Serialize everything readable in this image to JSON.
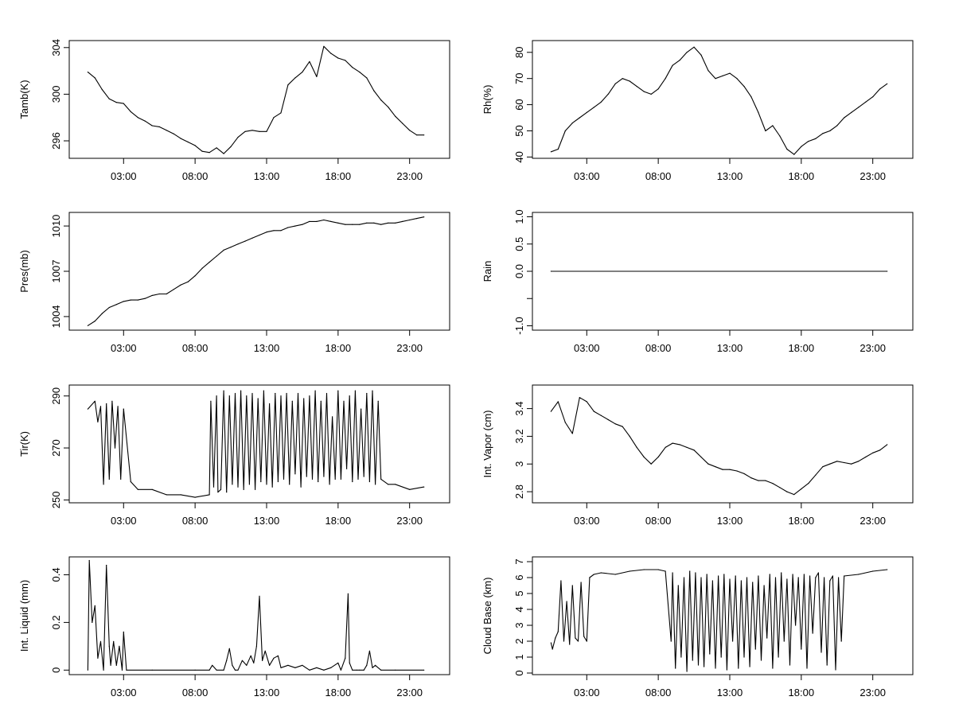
{
  "figure": {
    "x_tick_labels": [
      "03:00",
      "08:00",
      "13:00",
      "18:00",
      "23:00"
    ]
  },
  "chart_data": [
    {
      "type": "line",
      "ylabel": "Tamb(K)",
      "x": [
        0.5,
        1,
        1.5,
        2,
        2.5,
        3,
        3.5,
        4,
        4.5,
        5,
        5.5,
        6,
        6.5,
        7,
        7.5,
        8,
        8.5,
        9,
        9.5,
        10,
        10.5,
        11,
        11.5,
        12,
        12.5,
        13,
        13.5,
        14,
        14.5,
        15,
        15.5,
        16,
        16.5,
        17,
        17.5,
        18,
        18.5,
        19,
        19.5,
        20,
        20.5,
        21,
        21.5,
        22,
        22.5,
        23,
        23.5,
        24
      ],
      "values": [
        301.9,
        301.4,
        300.4,
        299.6,
        299.3,
        299.2,
        298.5,
        298.0,
        297.7,
        297.3,
        297.2,
        296.9,
        296.6,
        296.2,
        295.9,
        295.6,
        295.1,
        295.0,
        295.4,
        294.9,
        295.5,
        296.3,
        296.8,
        296.9,
        296.8,
        296.8,
        298.0,
        298.4,
        300.8,
        301.4,
        301.9,
        302.8,
        301.5,
        304.1,
        303.5,
        303.1,
        302.9,
        302.3,
        301.9,
        301.4,
        300.3,
        299.5,
        298.9,
        298.1,
        297.5,
        296.9,
        296.5,
        296.5
      ],
      "yticks": [
        296,
        300,
        304
      ],
      "ylim": [
        294.5,
        304.6
      ],
      "xlim": [
        -0.8,
        25.8
      ]
    },
    {
      "type": "line",
      "ylabel": "Rh(%)",
      "x": [
        0.5,
        1,
        1.5,
        2,
        2.5,
        3,
        3.5,
        4,
        4.5,
        5,
        5.5,
        6,
        6.5,
        7,
        7.5,
        8,
        8.5,
        9,
        9.5,
        10,
        10.5,
        11,
        11.5,
        12,
        12.5,
        13,
        13.5,
        14,
        14.5,
        15,
        15.5,
        16,
        16.5,
        17,
        17.5,
        18,
        18.5,
        19,
        19.5,
        20,
        20.5,
        21,
        21.5,
        22,
        22.5,
        23,
        23.5,
        24
      ],
      "values": [
        42,
        43,
        50,
        53,
        55,
        57,
        59,
        61,
        64,
        68,
        70,
        69,
        67,
        65,
        64,
        66,
        70,
        75,
        77,
        80,
        82,
        79,
        73,
        70,
        71,
        72,
        70,
        67,
        63,
        57,
        50,
        52,
        48,
        43,
        41,
        44,
        46,
        47,
        49,
        50,
        52,
        55,
        57,
        59,
        61,
        63,
        66,
        68
      ],
      "yticks": [
        40,
        50,
        60,
        70,
        80
      ],
      "ylim": [
        39.5,
        84.5
      ],
      "xlim": [
        -0.8,
        25.8
      ]
    },
    {
      "type": "line",
      "ylabel": "Pres(mb)",
      "x": [
        0.5,
        1,
        1.5,
        2,
        2.5,
        3,
        3.5,
        4,
        4.5,
        5,
        5.5,
        6,
        6.5,
        7,
        7.5,
        8,
        8.5,
        9,
        9.5,
        10,
        10.5,
        11,
        11.5,
        12,
        12.5,
        13,
        13.5,
        14,
        14.5,
        15,
        15.5,
        16,
        16.5,
        17,
        17.5,
        18,
        18.5,
        19,
        19.5,
        20,
        20.5,
        21,
        21.5,
        22,
        22.5,
        23,
        23.5,
        24
      ],
      "values": [
        1003.4,
        1003.7,
        1004.2,
        1004.6,
        1004.8,
        1005.0,
        1005.1,
        1005.1,
        1005.2,
        1005.4,
        1005.5,
        1005.5,
        1005.8,
        1006.1,
        1006.3,
        1006.7,
        1007.2,
        1007.6,
        1008.0,
        1008.4,
        1008.6,
        1008.8,
        1009.0,
        1009.2,
        1009.4,
        1009.6,
        1009.7,
        1009.7,
        1009.9,
        1010.0,
        1010.1,
        1010.3,
        1010.3,
        1010.4,
        1010.3,
        1010.2,
        1010.1,
        1010.1,
        1010.1,
        1010.2,
        1010.2,
        1010.1,
        1010.2,
        1010.2,
        1010.3,
        1010.4,
        1010.5,
        1010.6
      ],
      "yticks": [
        1004,
        1007,
        1010
      ],
      "ylim": [
        1003.1,
        1010.9
      ],
      "xlim": [
        -0.8,
        25.8
      ]
    },
    {
      "type": "line",
      "ylabel": "Rain",
      "x": [
        0.5,
        24
      ],
      "values": [
        0,
        0
      ],
      "yticks": [
        -1.0,
        -0.5,
        0.0,
        0.5,
        1.0
      ],
      "ytick_labels": [
        "-1.0",
        "",
        "0.0",
        "0.5",
        "1.0"
      ],
      "ylim": [
        -1.08,
        1.08
      ],
      "xlim": [
        -0.8,
        25.8
      ]
    },
    {
      "type": "line",
      "ylabel": "Tir(K)",
      "x": [
        0.5,
        1,
        1.2,
        1.4,
        1.6,
        1.8,
        2,
        2.2,
        2.4,
        2.6,
        2.8,
        3,
        3.5,
        4,
        5,
        6,
        7,
        8,
        9,
        9.1,
        9.3,
        9.5,
        9.6,
        9.8,
        10,
        10.2,
        10.4,
        10.6,
        10.8,
        11,
        11.2,
        11.4,
        11.6,
        11.8,
        12,
        12.2,
        12.4,
        12.6,
        12.8,
        13,
        13.2,
        13.4,
        13.6,
        13.8,
        14,
        14.2,
        14.4,
        14.6,
        14.8,
        15,
        15.2,
        15.4,
        15.6,
        15.8,
        16,
        16.2,
        16.4,
        16.6,
        16.8,
        17,
        17.2,
        17.4,
        17.6,
        17.8,
        18,
        18.2,
        18.4,
        18.6,
        18.8,
        19,
        19.2,
        19.4,
        19.6,
        19.8,
        20,
        20.2,
        20.4,
        20.6,
        20.8,
        21,
        21.5,
        22,
        23,
        24
      ],
      "values": [
        285,
        288,
        280,
        286,
        256,
        287,
        258,
        288,
        270,
        286,
        258,
        285,
        257,
        254,
        254,
        252,
        252,
        251,
        252,
        288,
        255,
        290,
        253,
        254,
        292,
        253,
        290,
        256,
        291,
        255,
        292,
        254,
        290,
        256,
        291,
        254,
        289,
        257,
        292,
        256,
        287,
        255,
        291,
        257,
        290,
        258,
        291,
        256,
        288,
        260,
        291,
        255,
        289,
        259,
        290,
        258,
        292,
        257,
        288,
        259,
        291,
        256,
        282,
        258,
        292,
        258,
        288,
        262,
        290,
        257,
        292,
        258,
        285,
        259,
        291,
        257,
        292,
        256,
        288,
        258,
        256,
        256,
        254,
        255
      ],
      "yticks": [
        250,
        270,
        290
      ],
      "ylim": [
        248.9,
        294.2
      ],
      "xlim": [
        -0.8,
        25.8
      ]
    },
    {
      "type": "line",
      "ylabel": "Int. Vapor (cm)",
      "x": [
        0.5,
        1,
        1.5,
        2,
        2.5,
        3,
        3.5,
        4,
        4.5,
        5,
        5.5,
        6,
        6.5,
        7,
        7.5,
        8,
        8.5,
        9,
        9.5,
        10,
        10.5,
        11,
        11.5,
        12,
        12.5,
        13,
        13.5,
        14,
        14.5,
        15,
        15.5,
        16,
        16.5,
        17,
        17.5,
        18,
        18.5,
        19,
        19.5,
        20,
        20.5,
        21,
        21.5,
        22,
        22.5,
        23,
        23.5,
        24
      ],
      "values": [
        3.38,
        3.45,
        3.3,
        3.22,
        3.48,
        3.45,
        3.38,
        3.35,
        3.32,
        3.29,
        3.27,
        3.2,
        3.12,
        3.05,
        3.0,
        3.05,
        3.12,
        3.15,
        3.14,
        3.12,
        3.1,
        3.05,
        3.0,
        2.98,
        2.96,
        2.96,
        2.95,
        2.93,
        2.9,
        2.88,
        2.88,
        2.86,
        2.83,
        2.8,
        2.78,
        2.82,
        2.86,
        2.92,
        2.98,
        3.0,
        3.02,
        3.01,
        3.0,
        3.02,
        3.05,
        3.08,
        3.1,
        3.14
      ],
      "yticks": [
        2.8,
        3.0,
        3.2,
        3.4
      ],
      "ylim": [
        2.72,
        3.57
      ],
      "xlim": [
        -0.8,
        25.8
      ]
    },
    {
      "type": "line",
      "ylabel": "Int. Liquid (mm)",
      "x": [
        0.5,
        0.6,
        0.8,
        1,
        1.2,
        1.4,
        1.6,
        1.8,
        2,
        2.1,
        2.3,
        2.5,
        2.7,
        2.9,
        3,
        3.2,
        5,
        8,
        9,
        9.2,
        9.5,
        10,
        10.2,
        10.4,
        10.6,
        10.8,
        11,
        11.3,
        11.6,
        11.9,
        12.1,
        12.3,
        12.5,
        12.7,
        12.9,
        13.2,
        13.5,
        13.8,
        14,
        14.5,
        15,
        15.5,
        16,
        16.5,
        17,
        17.5,
        18,
        18.2,
        18.5,
        18.7,
        18.8,
        19,
        19.3,
        19.5,
        19.8,
        20,
        20.2,
        20.4,
        20.6,
        21,
        22,
        24
      ],
      "values": [
        0,
        0.46,
        0.2,
        0.27,
        0.05,
        0.12,
        0,
        0.44,
        0.1,
        0.02,
        0.12,
        0.02,
        0.1,
        0,
        0.16,
        0,
        0,
        0,
        0,
        0.02,
        0,
        0,
        0.04,
        0.09,
        0.02,
        0,
        0,
        0.04,
        0.02,
        0.06,
        0.03,
        0.1,
        0.31,
        0.04,
        0.08,
        0.02,
        0.05,
        0.06,
        0.01,
        0.02,
        0.01,
        0.02,
        0,
        0.01,
        0,
        0.01,
        0.03,
        0,
        0.05,
        0.32,
        0.03,
        0,
        0,
        0,
        0,
        0.02,
        0.08,
        0.01,
        0.02,
        0,
        0,
        0
      ],
      "yticks": [
        0.0,
        0.2,
        0.4
      ],
      "ylim": [
        -0.019,
        0.475
      ],
      "xlim": [
        -0.8,
        25.8
      ]
    },
    {
      "type": "line",
      "ylabel": "Cloud Base (km)",
      "x": [
        0.5,
        0.6,
        0.8,
        1,
        1.2,
        1.4,
        1.6,
        1.8,
        2,
        2.2,
        2.4,
        2.6,
        2.8,
        3,
        3.2,
        3.5,
        4,
        5,
        6,
        7,
        8,
        8.5,
        8.9,
        9,
        9.2,
        9.4,
        9.6,
        9.8,
        10,
        10.2,
        10.4,
        10.6,
        10.8,
        11,
        11.2,
        11.4,
        11.6,
        11.8,
        12,
        12.2,
        12.4,
        12.6,
        12.8,
        13,
        13.2,
        13.4,
        13.6,
        13.8,
        14,
        14.2,
        14.4,
        14.6,
        14.8,
        15,
        15.2,
        15.4,
        15.6,
        15.8,
        16,
        16.2,
        16.4,
        16.6,
        16.8,
        17,
        17.2,
        17.4,
        17.6,
        17.8,
        18,
        18.2,
        18.4,
        18.6,
        18.8,
        19,
        19.2,
        19.4,
        19.6,
        19.8,
        20,
        20.2,
        20.4,
        20.6,
        20.8,
        21,
        22,
        23,
        24
      ],
      "values": [
        1.9,
        1.5,
        2.2,
        2.6,
        5.8,
        2.0,
        4.5,
        1.8,
        5.5,
        2.2,
        2.0,
        5.7,
        2.3,
        2.0,
        6.0,
        6.2,
        6.3,
        6.2,
        6.4,
        6.5,
        6.5,
        6.4,
        2.0,
        6.3,
        0.3,
        5.5,
        1.0,
        6.0,
        0.1,
        6.4,
        0.8,
        6.3,
        0.5,
        6.0,
        0.4,
        6.2,
        1.2,
        5.8,
        0.3,
        6.1,
        1.0,
        6.2,
        0.2,
        5.9,
        2.0,
        6.1,
        0.3,
        5.8,
        1.0,
        6.0,
        0.4,
        5.7,
        1.5,
        6.1,
        0.8,
        5.5,
        2.2,
        6.2,
        0.3,
        6.0,
        1.0,
        6.3,
        2.0,
        5.9,
        0.5,
        6.2,
        3.0,
        6.0,
        1.5,
        6.2,
        0.3,
        6.1,
        2.5,
        6.0,
        6.3,
        1.3,
        6.0,
        0.5,
        5.8,
        6.1,
        0.2,
        6.0,
        2.0,
        6.1,
        6.2,
        6.4,
        6.5
      ],
      "yticks": [
        0,
        1,
        2,
        3,
        4,
        5,
        6,
        7
      ],
      "ylim": [
        -0.1,
        7.3
      ],
      "xlim": [
        -0.8,
        25.8
      ]
    }
  ]
}
